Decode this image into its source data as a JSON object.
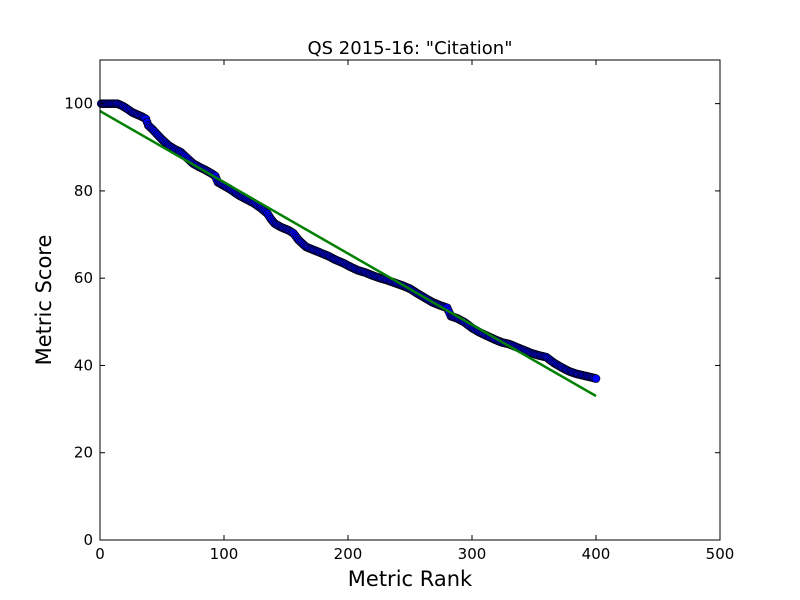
{
  "chart_data": {
    "type": "scatter",
    "title": "QS 2015-16: \"Citation\"",
    "xlabel": "Metric Rank",
    "ylabel": "Metric Score",
    "xlim": [
      0,
      500
    ],
    "ylim": [
      0,
      110
    ],
    "xticks": [
      0,
      100,
      200,
      300,
      400,
      500
    ],
    "yticks": [
      0,
      20,
      40,
      60,
      80,
      100
    ],
    "grid": false,
    "legend": "none",
    "series": [
      {
        "kind": "scatter",
        "color": "#0000ff",
        "edge_color": "#000000",
        "points": [
          [
            1,
            100.0
          ],
          [
            5,
            100.0
          ],
          [
            10,
            100.0
          ],
          [
            14,
            100.0
          ],
          [
            18,
            99.5
          ],
          [
            22,
            98.8
          ],
          [
            26,
            98.0
          ],
          [
            30,
            97.5
          ],
          [
            34,
            97.0
          ],
          [
            37,
            96.5
          ],
          [
            39,
            95.0
          ],
          [
            42,
            94.2
          ],
          [
            46,
            93.0
          ],
          [
            50,
            91.8
          ],
          [
            55,
            90.5
          ],
          [
            60,
            89.6
          ],
          [
            65,
            88.9
          ],
          [
            70,
            87.6
          ],
          [
            75,
            86.3
          ],
          [
            80,
            85.5
          ],
          [
            85,
            84.8
          ],
          [
            90,
            84.0
          ],
          [
            93,
            83.4
          ],
          [
            95,
            82.0
          ],
          [
            100,
            81.2
          ],
          [
            106,
            80.2
          ],
          [
            112,
            79.0
          ],
          [
            118,
            78.1
          ],
          [
            124,
            77.2
          ],
          [
            130,
            76.0
          ],
          [
            135,
            74.8
          ],
          [
            138,
            73.5
          ],
          [
            141,
            72.5
          ],
          [
            146,
            71.7
          ],
          [
            152,
            71.0
          ],
          [
            156,
            70.3
          ],
          [
            160,
            68.8
          ],
          [
            166,
            67.2
          ],
          [
            172,
            66.5
          ],
          [
            178,
            65.8
          ],
          [
            184,
            65.1
          ],
          [
            190,
            64.2
          ],
          [
            196,
            63.5
          ],
          [
            202,
            62.6
          ],
          [
            208,
            61.8
          ],
          [
            214,
            61.3
          ],
          [
            220,
            60.6
          ],
          [
            226,
            60.0
          ],
          [
            232,
            59.5
          ],
          [
            238,
            58.9
          ],
          [
            244,
            58.3
          ],
          [
            250,
            57.6
          ],
          [
            256,
            56.5
          ],
          [
            262,
            55.5
          ],
          [
            268,
            54.5
          ],
          [
            274,
            53.8
          ],
          [
            280,
            53.2
          ],
          [
            283,
            51.3
          ],
          [
            288,
            50.8
          ],
          [
            294,
            49.9
          ],
          [
            300,
            48.6
          ],
          [
            306,
            47.6
          ],
          [
            312,
            46.8
          ],
          [
            318,
            46.0
          ],
          [
            324,
            45.3
          ],
          [
            330,
            44.9
          ],
          [
            336,
            44.2
          ],
          [
            342,
            43.5
          ],
          [
            348,
            42.8
          ],
          [
            354,
            42.3
          ],
          [
            360,
            41.9
          ],
          [
            366,
            40.6
          ],
          [
            372,
            39.6
          ],
          [
            378,
            38.7
          ],
          [
            384,
            38.1
          ],
          [
            390,
            37.7
          ],
          [
            396,
            37.3
          ],
          [
            400,
            37.0
          ]
        ]
      },
      {
        "kind": "line",
        "color": "#008000",
        "points": [
          [
            0,
            98.3
          ],
          [
            400,
            33.0
          ]
        ]
      }
    ]
  }
}
